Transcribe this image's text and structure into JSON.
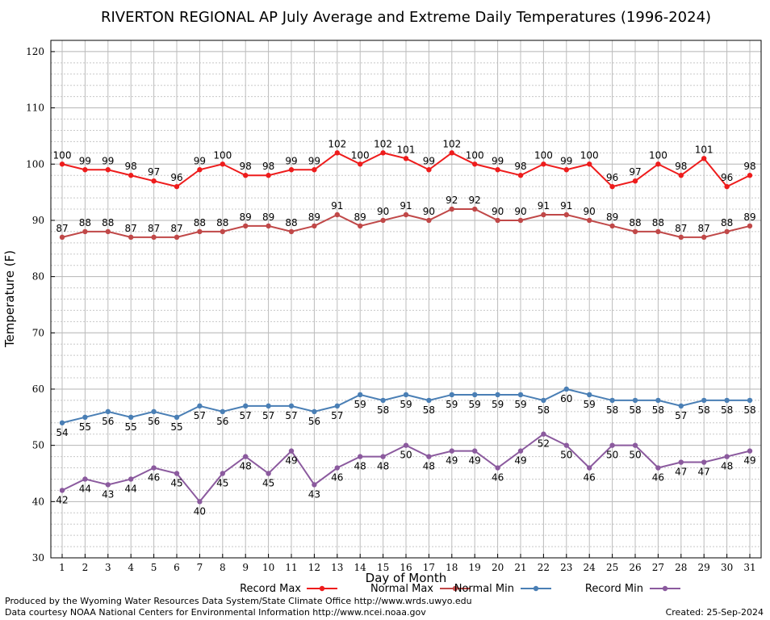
{
  "chart_data": {
    "type": "line",
    "title": "RIVERTON REGIONAL AP July Average and Extreme Daily Temperatures (1996-2024)",
    "xlabel": "Day of Month",
    "ylabel": "Temperature (F)",
    "ylim": [
      30,
      122
    ],
    "yticks": [
      30,
      40,
      50,
      60,
      70,
      80,
      90,
      100,
      110,
      120
    ],
    "categories": [
      1,
      2,
      3,
      4,
      5,
      6,
      7,
      8,
      9,
      10,
      11,
      12,
      13,
      14,
      15,
      16,
      17,
      18,
      19,
      20,
      21,
      22,
      23,
      24,
      25,
      26,
      27,
      28,
      29,
      30,
      31
    ],
    "grid": true,
    "legend_position": "bottom",
    "series": [
      {
        "name": "Record Max",
        "color": "#ee1c1c",
        "label_pos": "above",
        "values": [
          100,
          99,
          99,
          98,
          97,
          96,
          99,
          100,
          98,
          98,
          99,
          99,
          102,
          100,
          102,
          101,
          99,
          102,
          100,
          99,
          98,
          100,
          99,
          100,
          96,
          97,
          100,
          98,
          101,
          96,
          98
        ]
      },
      {
        "name": "Normal Max",
        "color": "#c04848",
        "label_pos": "above",
        "values": [
          87,
          88,
          88,
          87,
          87,
          87,
          88,
          88,
          89,
          89,
          88,
          89,
          91,
          89,
          90,
          91,
          90,
          92,
          92,
          90,
          90,
          91,
          91,
          90,
          89,
          88,
          88,
          87,
          87,
          88,
          89
        ]
      },
      {
        "name": "Normal Min",
        "color": "#4a7fb5",
        "label_pos": "below",
        "values": [
          54,
          55,
          56,
          55,
          56,
          55,
          57,
          56,
          57,
          57,
          57,
          56,
          57,
          59,
          58,
          59,
          58,
          59,
          59,
          59,
          59,
          58,
          60,
          59,
          58,
          58,
          58,
          57,
          58,
          58,
          58
        ]
      },
      {
        "name": "Record Min",
        "color": "#8b5a9e",
        "label_pos": "below",
        "values": [
          42,
          44,
          43,
          44,
          46,
          45,
          40,
          45,
          48,
          45,
          49,
          43,
          46,
          48,
          48,
          50,
          48,
          49,
          49,
          46,
          49,
          52,
          50,
          46,
          50,
          50,
          46,
          47,
          47,
          48,
          49
        ]
      }
    ]
  },
  "footer": {
    "produced_by": "Produced by the Wyoming Water Resources Data System/State Climate Office http://www.wrds.uwyo.edu",
    "courtesy": "Data courtesy NOAA National Centers for Environmental Information http://www.ncei.noaa.gov",
    "created": "Created: 25-Sep-2024"
  }
}
